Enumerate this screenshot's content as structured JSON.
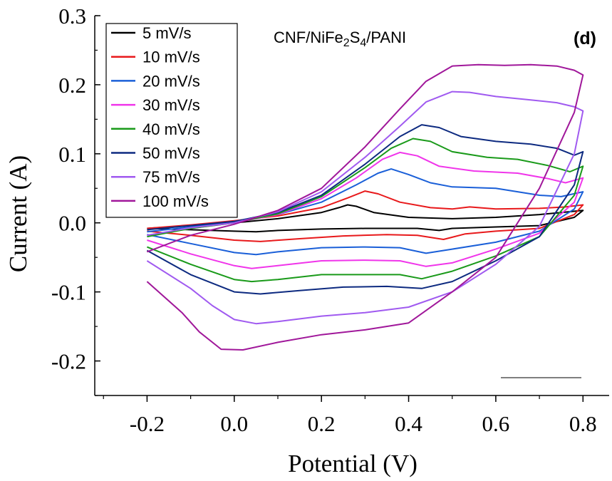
{
  "chart_data": {
    "type": "line",
    "title": "",
    "xlabel": "Potential (V)",
    "ylabel": "Current (A)",
    "xlim": [
      -0.32,
      0.86
    ],
    "ylim": [
      -0.25,
      0.3
    ],
    "x_ticks": [
      -0.2,
      0.0,
      0.2,
      0.4,
      0.6,
      0.8
    ],
    "x_tick_labels": [
      "-0.2",
      "0.0",
      "0.2",
      "0.4",
      "0.6",
      "0.8"
    ],
    "y_ticks": [
      -0.2,
      -0.1,
      0.0,
      0.1,
      0.2,
      0.3
    ],
    "y_tick_labels": [
      "-0.2",
      "-0.1",
      "0.0",
      "0.1",
      "0.2",
      "0.3"
    ],
    "grid": false,
    "legend_position": "top-left",
    "annotation": {
      "prefix": "CNF/NiFe",
      "sub1": "2",
      "mid": "S",
      "sub2": "4",
      "suffix": "/PANI"
    },
    "panel_label": "(d)",
    "series": [
      {
        "name": "5 mV/s",
        "color": "#000000",
        "anodic": [
          [
            -0.2,
            -0.008
          ],
          [
            -0.1,
            -0.004
          ],
          [
            0.0,
            0.0
          ],
          [
            0.1,
            0.006
          ],
          [
            0.2,
            0.015
          ],
          [
            0.24,
            0.022
          ],
          [
            0.26,
            0.026
          ],
          [
            0.28,
            0.024
          ],
          [
            0.32,
            0.015
          ],
          [
            0.4,
            0.008
          ],
          [
            0.5,
            0.006
          ],
          [
            0.6,
            0.008
          ],
          [
            0.7,
            0.012
          ],
          [
            0.75,
            0.015
          ],
          [
            0.8,
            0.018
          ]
        ],
        "cathodic": [
          [
            0.8,
            0.018
          ],
          [
            0.78,
            0.008
          ],
          [
            0.7,
            -0.004
          ],
          [
            0.6,
            -0.006
          ],
          [
            0.5,
            -0.008
          ],
          [
            0.47,
            -0.011
          ],
          [
            0.42,
            -0.008
          ],
          [
            0.3,
            -0.008
          ],
          [
            0.2,
            -0.009
          ],
          [
            0.1,
            -0.011
          ],
          [
            0.05,
            -0.013
          ],
          [
            0.0,
            -0.012
          ],
          [
            -0.1,
            -0.01
          ],
          [
            -0.2,
            -0.008
          ]
        ]
      },
      {
        "name": "10 mV/s",
        "color": "#e8191b",
        "anodic": [
          [
            -0.2,
            -0.008
          ],
          [
            -0.1,
            -0.003
          ],
          [
            0.0,
            0.003
          ],
          [
            0.1,
            0.01
          ],
          [
            0.2,
            0.022
          ],
          [
            0.26,
            0.036
          ],
          [
            0.3,
            0.046
          ],
          [
            0.33,
            0.042
          ],
          [
            0.38,
            0.03
          ],
          [
            0.45,
            0.022
          ],
          [
            0.5,
            0.02
          ],
          [
            0.54,
            0.023
          ],
          [
            0.6,
            0.02
          ],
          [
            0.7,
            0.021
          ],
          [
            0.76,
            0.023
          ],
          [
            0.8,
            0.026
          ]
        ],
        "cathodic": [
          [
            0.8,
            0.026
          ],
          [
            0.78,
            0.012
          ],
          [
            0.7,
            -0.008
          ],
          [
            0.6,
            -0.012
          ],
          [
            0.53,
            -0.016
          ],
          [
            0.48,
            -0.024
          ],
          [
            0.42,
            -0.018
          ],
          [
            0.35,
            -0.017
          ],
          [
            0.25,
            -0.019
          ],
          [
            0.15,
            -0.023
          ],
          [
            0.06,
            -0.027
          ],
          [
            0.0,
            -0.025
          ],
          [
            -0.1,
            -0.018
          ],
          [
            -0.2,
            -0.012
          ]
        ]
      },
      {
        "name": "20 mV/s",
        "color": "#1a5fd8",
        "anodic": [
          [
            -0.2,
            -0.013
          ],
          [
            -0.1,
            -0.006
          ],
          [
            0.0,
            0.002
          ],
          [
            0.1,
            0.012
          ],
          [
            0.2,
            0.03
          ],
          [
            0.28,
            0.055
          ],
          [
            0.33,
            0.072
          ],
          [
            0.36,
            0.078
          ],
          [
            0.4,
            0.07
          ],
          [
            0.45,
            0.058
          ],
          [
            0.5,
            0.052
          ],
          [
            0.6,
            0.05
          ],
          [
            0.7,
            0.04
          ],
          [
            0.75,
            0.038
          ],
          [
            0.8,
            0.045
          ]
        ],
        "cathodic": [
          [
            0.8,
            0.045
          ],
          [
            0.78,
            0.02
          ],
          [
            0.7,
            -0.012
          ],
          [
            0.6,
            -0.028
          ],
          [
            0.5,
            -0.038
          ],
          [
            0.44,
            -0.044
          ],
          [
            0.38,
            -0.036
          ],
          [
            0.3,
            -0.035
          ],
          [
            0.2,
            -0.036
          ],
          [
            0.1,
            -0.042
          ],
          [
            0.05,
            -0.046
          ],
          [
            0.0,
            -0.043
          ],
          [
            -0.1,
            -0.03
          ],
          [
            -0.2,
            -0.017
          ]
        ]
      },
      {
        "name": "30 mV/s",
        "color": "#f035ea",
        "anodic": [
          [
            -0.2,
            -0.018
          ],
          [
            -0.1,
            -0.008
          ],
          [
            0.0,
            0.0
          ],
          [
            0.1,
            0.012
          ],
          [
            0.2,
            0.035
          ],
          [
            0.28,
            0.065
          ],
          [
            0.34,
            0.092
          ],
          [
            0.38,
            0.102
          ],
          [
            0.42,
            0.097
          ],
          [
            0.47,
            0.082
          ],
          [
            0.55,
            0.075
          ],
          [
            0.65,
            0.072
          ],
          [
            0.72,
            0.064
          ],
          [
            0.76,
            0.058
          ],
          [
            0.8,
            0.065
          ]
        ],
        "cathodic": [
          [
            0.8,
            0.065
          ],
          [
            0.78,
            0.03
          ],
          [
            0.7,
            -0.015
          ],
          [
            0.6,
            -0.038
          ],
          [
            0.5,
            -0.058
          ],
          [
            0.44,
            -0.063
          ],
          [
            0.38,
            -0.055
          ],
          [
            0.3,
            -0.054
          ],
          [
            0.2,
            -0.055
          ],
          [
            0.1,
            -0.062
          ],
          [
            0.04,
            -0.066
          ],
          [
            0.0,
            -0.062
          ],
          [
            -0.1,
            -0.045
          ],
          [
            -0.2,
            -0.025
          ]
        ]
      },
      {
        "name": "40 mV/s",
        "color": "#1a9a1a",
        "anodic": [
          [
            -0.2,
            -0.02
          ],
          [
            -0.1,
            -0.008
          ],
          [
            0.0,
            0.0
          ],
          [
            0.1,
            0.013
          ],
          [
            0.2,
            0.038
          ],
          [
            0.3,
            0.08
          ],
          [
            0.36,
            0.108
          ],
          [
            0.41,
            0.122
          ],
          [
            0.45,
            0.118
          ],
          [
            0.5,
            0.103
          ],
          [
            0.58,
            0.095
          ],
          [
            0.65,
            0.092
          ],
          [
            0.72,
            0.083
          ],
          [
            0.77,
            0.074
          ],
          [
            0.8,
            0.082
          ]
        ],
        "cathodic": [
          [
            0.8,
            0.082
          ],
          [
            0.78,
            0.04
          ],
          [
            0.7,
            -0.02
          ],
          [
            0.6,
            -0.048
          ],
          [
            0.5,
            -0.07
          ],
          [
            0.43,
            -0.081
          ],
          [
            0.38,
            -0.075
          ],
          [
            0.3,
            -0.075
          ],
          [
            0.2,
            -0.075
          ],
          [
            0.1,
            -0.082
          ],
          [
            0.04,
            -0.085
          ],
          [
            0.0,
            -0.082
          ],
          [
            -0.1,
            -0.06
          ],
          [
            -0.2,
            -0.035
          ]
        ]
      },
      {
        "name": "50 mV/s",
        "color": "#0d2a80",
        "anodic": [
          [
            -0.2,
            -0.01
          ],
          [
            -0.1,
            -0.004
          ],
          [
            0.0,
            0.002
          ],
          [
            0.1,
            0.015
          ],
          [
            0.2,
            0.04
          ],
          [
            0.3,
            0.085
          ],
          [
            0.38,
            0.125
          ],
          [
            0.43,
            0.142
          ],
          [
            0.47,
            0.138
          ],
          [
            0.52,
            0.125
          ],
          [
            0.6,
            0.118
          ],
          [
            0.68,
            0.114
          ],
          [
            0.74,
            0.108
          ],
          [
            0.78,
            0.098
          ],
          [
            0.8,
            0.103
          ]
        ],
        "cathodic": [
          [
            0.8,
            0.103
          ],
          [
            0.78,
            0.055
          ],
          [
            0.7,
            -0.02
          ],
          [
            0.6,
            -0.055
          ],
          [
            0.5,
            -0.085
          ],
          [
            0.43,
            -0.095
          ],
          [
            0.35,
            -0.092
          ],
          [
            0.25,
            -0.093
          ],
          [
            0.15,
            -0.098
          ],
          [
            0.06,
            -0.103
          ],
          [
            0.0,
            -0.1
          ],
          [
            -0.1,
            -0.075
          ],
          [
            -0.2,
            -0.04
          ]
        ]
      },
      {
        "name": "75 mV/s",
        "color": "#a05af0",
        "anodic": [
          [
            -0.2,
            -0.018
          ],
          [
            -0.1,
            -0.007
          ],
          [
            0.0,
            0.0
          ],
          [
            0.1,
            0.016
          ],
          [
            0.2,
            0.045
          ],
          [
            0.3,
            0.095
          ],
          [
            0.38,
            0.14
          ],
          [
            0.44,
            0.175
          ],
          [
            0.5,
            0.19
          ],
          [
            0.54,
            0.189
          ],
          [
            0.6,
            0.183
          ],
          [
            0.68,
            0.178
          ],
          [
            0.74,
            0.174
          ],
          [
            0.78,
            0.168
          ],
          [
            0.8,
            0.162
          ]
        ],
        "cathodic": [
          [
            0.8,
            0.162
          ],
          [
            0.78,
            0.1
          ],
          [
            0.7,
            -0.005
          ],
          [
            0.6,
            -0.06
          ],
          [
            0.5,
            -0.1
          ],
          [
            0.4,
            -0.122
          ],
          [
            0.3,
            -0.13
          ],
          [
            0.2,
            -0.135
          ],
          [
            0.1,
            -0.143
          ],
          [
            0.05,
            -0.146
          ],
          [
            0.0,
            -0.14
          ],
          [
            -0.05,
            -0.12
          ],
          [
            -0.1,
            -0.095
          ],
          [
            -0.2,
            -0.055
          ]
        ]
      },
      {
        "name": "100 mV/s",
        "color": "#a0179a",
        "anodic": [
          [
            -0.2,
            -0.042
          ],
          [
            -0.1,
            -0.018
          ],
          [
            0.0,
            -0.002
          ],
          [
            0.1,
            0.018
          ],
          [
            0.2,
            0.05
          ],
          [
            0.3,
            0.11
          ],
          [
            0.38,
            0.165
          ],
          [
            0.44,
            0.205
          ],
          [
            0.5,
            0.227
          ],
          [
            0.56,
            0.229
          ],
          [
            0.62,
            0.228
          ],
          [
            0.68,
            0.229
          ],
          [
            0.74,
            0.227
          ],
          [
            0.78,
            0.221
          ],
          [
            0.8,
            0.214
          ]
        ],
        "cathodic": [
          [
            0.8,
            0.214
          ],
          [
            0.78,
            0.16
          ],
          [
            0.7,
            0.05
          ],
          [
            0.6,
            -0.05
          ],
          [
            0.5,
            -0.1
          ],
          [
            0.4,
            -0.145
          ],
          [
            0.3,
            -0.155
          ],
          [
            0.2,
            -0.162
          ],
          [
            0.1,
            -0.173
          ],
          [
            0.02,
            -0.184
          ],
          [
            -0.03,
            -0.183
          ],
          [
            -0.08,
            -0.158
          ],
          [
            -0.12,
            -0.13
          ],
          [
            -0.2,
            -0.085
          ]
        ]
      }
    ]
  }
}
